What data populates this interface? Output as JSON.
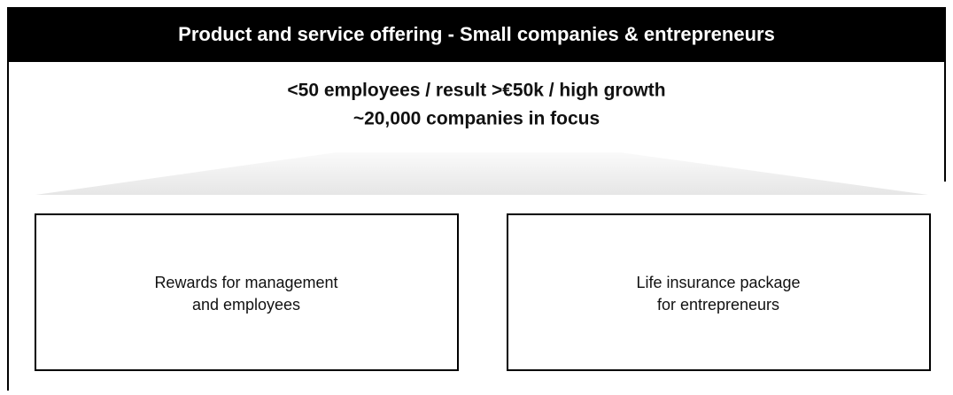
{
  "header": {
    "title": "Product and service offering - Small companies & entrepreneurs"
  },
  "subtitle": {
    "lines": [
      "<50 employees / result >€50k / high growth",
      "~20,000 companies in focus"
    ]
  },
  "boxes": [
    {
      "lines": [
        "Rewards for management",
        "and employees"
      ]
    },
    {
      "lines": [
        "Life insurance package",
        "for entrepreneurs"
      ]
    }
  ]
}
